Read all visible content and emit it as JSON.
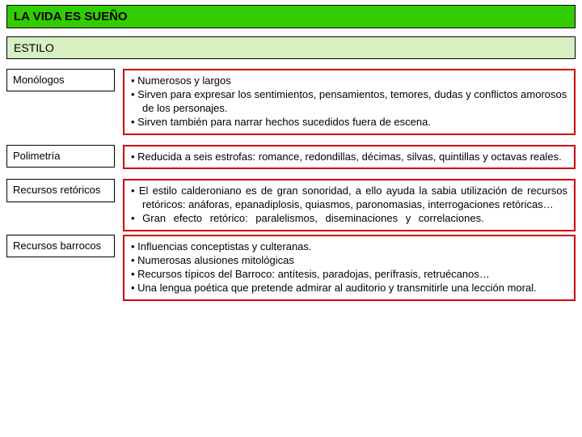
{
  "colors": {
    "title_bg": "#33cc00",
    "subtitle_bg": "#d6f0c2",
    "content_border": "#cc0000",
    "label_border": "#000000"
  },
  "title": "LA VIDA ES SUEÑO",
  "subtitle": "ESTILO",
  "sections": [
    {
      "label": "Monólogos",
      "items": [
        "Numerosos y largos",
        "Sirven para expresar los sentimientos, pensamientos, temores, dudas y conflictos amorosos de los personajes.",
        "Sirven también para narrar hechos sucedidos fuera de escena."
      ]
    },
    {
      "label": "Polimetría",
      "items": [
        "Reducida a seis estrofas: romance, redondillas, décimas, silvas, quintillas y octavas reales."
      ]
    },
    {
      "label": "Recursos retóricos",
      "justify": true,
      "items": [
        "El estilo calderoniano es de gran sonoridad, a ello ayuda la sabia utilización de recursos retóricos: anáforas, epanadiplosis, quiasmos, paronomasias, interrogaciones retóricas…",
        "Gran efecto retórico: paralelismos, diseminaciones y correlaciones."
      ]
    },
    {
      "label": "Recursos barrocos",
      "items": [
        "Influencias conceptistas y culteranas.",
        "Numerosas alusiones mitológicas",
        "Recursos típicos del Barroco: antítesis, paradojas, perífrasis, retruécanos…",
        "Una lengua poética que pretende admirar al auditorio y transmitirle una lección moral."
      ]
    }
  ]
}
